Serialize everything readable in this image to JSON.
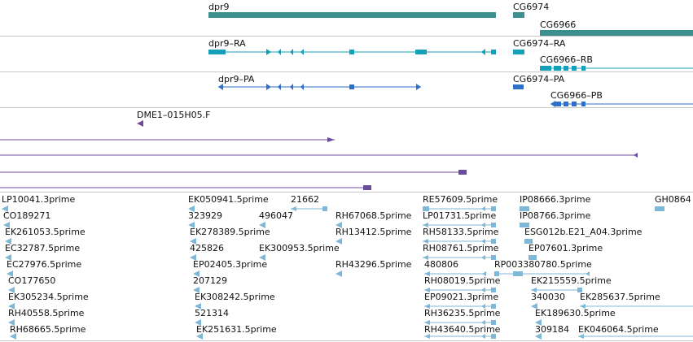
{
  "colors": {
    "gene": "#3b8f8f",
    "mrna": "#13a0b8",
    "cds": "#2e6fc7",
    "est_track": "#6a4c9c",
    "est_reads": "#7fb7d6",
    "divider": "#c8c8c8"
  },
  "tracks": {
    "genes": {
      "dpr9": "dpr9",
      "cg6974": "CG6974",
      "cg6966": "CG6966"
    },
    "transcripts": {
      "dpr9_ra": "dpr9–RA",
      "cg6974_ra": "CG6974–RA",
      "cg6966_rb": "CG6966–RB"
    },
    "proteins": {
      "dpr9_pa": "dpr9–PA",
      "cg6974_pa": "CG6974–PA",
      "cg6966_pb": "CG6966–PB"
    },
    "clone": {
      "label": "DME1–015H05.F"
    }
  },
  "est_labels": [
    "LP10041.3prime",
    "EK050941.5prime",
    "21662",
    "RE57609.5prime",
    "IP08666.3prime",
    "GH0864",
    "CO189271",
    "323929",
    "496047",
    "RH67068.5prime",
    "LP01731.5prime",
    "IP08766.3prime",
    "EK261053.5prime",
    "EK278389.5prime",
    "RH13412.5prime",
    "RH58133.5prime",
    "ESG012b.E21_A04.3prime",
    "EC32787.5prime",
    "425826",
    "EK300953.5prime",
    "RH08761.5prime",
    "EP07601.3prime",
    "EC27976.5prime",
    "EP02405.3prime",
    "RH43296.5prime",
    "480806",
    "RP003380780.5prime",
    "CO177650",
    "207129",
    "RH08019.5prime",
    "EK215559.5prime",
    "EK305234.5prime",
    "EK308242.5prime",
    "EP09021.3prime",
    "340030",
    "EK285637.5prime",
    "RH40558.5prime",
    "521314",
    "RH36235.5prime",
    "EK189630.5prime",
    "RH68665.5prime",
    "EK251631.5prime",
    "RH43640.5prime",
    "309184",
    "EK046064.5prime"
  ]
}
